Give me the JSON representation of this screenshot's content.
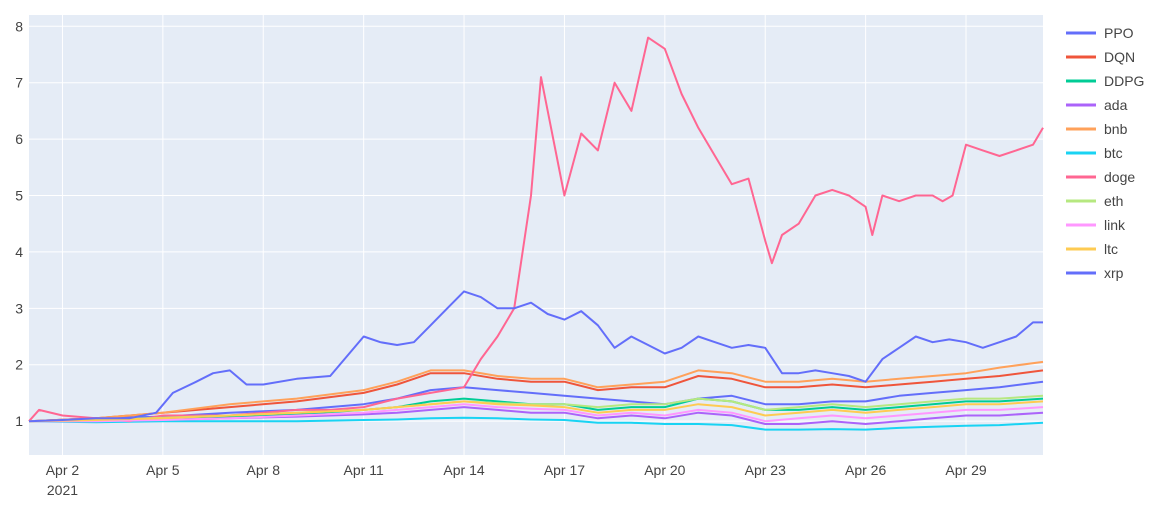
{
  "chart_data": {
    "type": "line",
    "title": "",
    "xlabel": "",
    "ylabel": "",
    "x_ticks": [
      "Apr 2",
      "Apr 5",
      "Apr 8",
      "Apr 11",
      "Apr 14",
      "Apr 17",
      "Apr 20",
      "Apr 23",
      "Apr 26",
      "Apr 29"
    ],
    "x_tick_days": [
      2,
      5,
      8,
      11,
      14,
      17,
      20,
      23,
      26,
      29
    ],
    "x_year_label": "2021",
    "xlim_days": [
      1,
      31.3
    ],
    "y_ticks": [
      1,
      2,
      3,
      4,
      5,
      6,
      7,
      8
    ],
    "ylim": [
      0.4,
      8.2
    ],
    "grid": true,
    "legend_position": "right",
    "series": [
      {
        "name": "PPO",
        "color": "#636efa",
        "x": [
          1,
          3,
          5,
          7,
          9,
          11,
          12,
          13,
          14,
          15,
          16,
          17,
          18,
          19,
          20,
          21,
          22,
          23,
          24,
          25,
          26,
          27,
          28,
          29,
          30,
          31.3
        ],
        "y": [
          1.0,
          1.05,
          1.08,
          1.15,
          1.2,
          1.3,
          1.4,
          1.55,
          1.6,
          1.55,
          1.5,
          1.45,
          1.4,
          1.35,
          1.3,
          1.4,
          1.45,
          1.3,
          1.3,
          1.35,
          1.35,
          1.45,
          1.5,
          1.55,
          1.6,
          1.7
        ]
      },
      {
        "name": "DQN",
        "color": "#EF553B",
        "x": [
          1,
          3,
          5,
          7,
          9,
          11,
          12,
          13,
          14,
          15,
          16,
          17,
          18,
          19,
          20,
          21,
          22,
          23,
          24,
          25,
          26,
          27,
          28,
          29,
          30,
          31.3
        ],
        "y": [
          1.0,
          1.05,
          1.15,
          1.25,
          1.35,
          1.5,
          1.65,
          1.85,
          1.85,
          1.75,
          1.7,
          1.7,
          1.55,
          1.6,
          1.6,
          1.8,
          1.75,
          1.6,
          1.6,
          1.65,
          1.6,
          1.65,
          1.7,
          1.75,
          1.8,
          1.9
        ]
      },
      {
        "name": "DDPG",
        "color": "#00cc96",
        "x": [
          1,
          3,
          5,
          7,
          9,
          11,
          12,
          13,
          14,
          15,
          16,
          17,
          18,
          19,
          20,
          21,
          22,
          23,
          24,
          25,
          26,
          27,
          28,
          29,
          30,
          31.3
        ],
        "y": [
          1.0,
          1.02,
          1.05,
          1.08,
          1.12,
          1.2,
          1.25,
          1.35,
          1.4,
          1.35,
          1.3,
          1.3,
          1.2,
          1.25,
          1.25,
          1.4,
          1.35,
          1.2,
          1.2,
          1.25,
          1.2,
          1.25,
          1.3,
          1.35,
          1.35,
          1.4
        ]
      },
      {
        "name": "ada",
        "color": "#ab63fa",
        "x": [
          1,
          3,
          5,
          7,
          9,
          11,
          12,
          13,
          14,
          15,
          16,
          17,
          18,
          19,
          20,
          21,
          22,
          23,
          24,
          25,
          26,
          27,
          28,
          29,
          30,
          31.3
        ],
        "y": [
          1.0,
          1.0,
          1.02,
          1.05,
          1.08,
          1.12,
          1.15,
          1.2,
          1.25,
          1.2,
          1.15,
          1.15,
          1.05,
          1.1,
          1.05,
          1.15,
          1.1,
          0.95,
          0.95,
          1.0,
          0.95,
          1.0,
          1.05,
          1.1,
          1.1,
          1.15
        ]
      },
      {
        "name": "bnb",
        "color": "#FFA15A",
        "x": [
          1,
          3,
          5,
          7,
          9,
          11,
          12,
          13,
          14,
          15,
          16,
          17,
          18,
          19,
          20,
          21,
          22,
          23,
          24,
          25,
          26,
          27,
          28,
          29,
          30,
          31.3
        ],
        "y": [
          1.0,
          1.05,
          1.15,
          1.3,
          1.4,
          1.55,
          1.7,
          1.9,
          1.9,
          1.8,
          1.75,
          1.75,
          1.6,
          1.65,
          1.7,
          1.9,
          1.85,
          1.7,
          1.7,
          1.75,
          1.7,
          1.75,
          1.8,
          1.85,
          1.95,
          2.05
        ]
      },
      {
        "name": "btc",
        "color": "#19d3f3",
        "x": [
          1,
          3,
          5,
          7,
          9,
          11,
          12,
          13,
          14,
          15,
          16,
          17,
          18,
          19,
          20,
          21,
          22,
          23,
          24,
          25,
          26,
          27,
          28,
          29,
          30,
          31.3
        ],
        "y": [
          1.0,
          0.98,
          1.0,
          1.0,
          1.0,
          1.02,
          1.03,
          1.05,
          1.06,
          1.05,
          1.03,
          1.02,
          0.97,
          0.97,
          0.95,
          0.95,
          0.93,
          0.85,
          0.85,
          0.86,
          0.85,
          0.88,
          0.9,
          0.92,
          0.93,
          0.97
        ]
      },
      {
        "name": "doge",
        "color": "#FF6692",
        "x": [
          1,
          1.3,
          2,
          3,
          4,
          5,
          6,
          7,
          8,
          9,
          10,
          11,
          12,
          13,
          14,
          14.5,
          15,
          15.5,
          16,
          16.3,
          16.5,
          17,
          17.5,
          18,
          18.5,
          19,
          19.5,
          20,
          20.5,
          21,
          21.5,
          22,
          22.5,
          23,
          23.2,
          23.5,
          24,
          24.5,
          25,
          25.5,
          26,
          26.2,
          26.5,
          27,
          27.5,
          28,
          28.3,
          28.6,
          29,
          29.5,
          30,
          30.5,
          31,
          31.3
        ],
        "y": [
          1.0,
          1.2,
          1.1,
          1.05,
          1.0,
          1.1,
          1.1,
          1.1,
          1.15,
          1.2,
          1.2,
          1.25,
          1.4,
          1.5,
          1.6,
          2.1,
          2.5,
          3.0,
          5.0,
          7.1,
          6.5,
          5.0,
          6.1,
          5.8,
          7.0,
          6.5,
          7.8,
          7.6,
          6.8,
          6.2,
          5.7,
          5.2,
          5.3,
          4.2,
          3.8,
          4.3,
          4.5,
          5.0,
          5.1,
          5.0,
          4.8,
          4.3,
          5.0,
          4.9,
          5.0,
          5.0,
          4.9,
          5.0,
          5.9,
          5.8,
          5.7,
          5.8,
          5.9,
          6.2
        ]
      },
      {
        "name": "eth",
        "color": "#B6E880",
        "x": [
          1,
          3,
          5,
          7,
          9,
          11,
          12,
          13,
          14,
          15,
          16,
          17,
          18,
          19,
          20,
          21,
          22,
          23,
          24,
          25,
          26,
          27,
          28,
          29,
          30,
          31.3
        ],
        "y": [
          1.0,
          1.02,
          1.06,
          1.1,
          1.15,
          1.2,
          1.25,
          1.3,
          1.35,
          1.32,
          1.3,
          1.3,
          1.25,
          1.3,
          1.3,
          1.4,
          1.35,
          1.2,
          1.25,
          1.3,
          1.25,
          1.3,
          1.35,
          1.4,
          1.4,
          1.45
        ]
      },
      {
        "name": "link",
        "color": "#FF97FF",
        "x": [
          1,
          3,
          5,
          7,
          9,
          11,
          12,
          13,
          14,
          15,
          16,
          17,
          18,
          19,
          20,
          21,
          22,
          23,
          24,
          25,
          26,
          27,
          28,
          29,
          30,
          31.3
        ],
        "y": [
          1.0,
          1.0,
          1.02,
          1.05,
          1.1,
          1.15,
          1.2,
          1.25,
          1.3,
          1.25,
          1.22,
          1.2,
          1.1,
          1.15,
          1.1,
          1.2,
          1.15,
          1.0,
          1.05,
          1.1,
          1.05,
          1.1,
          1.15,
          1.2,
          1.2,
          1.25
        ]
      },
      {
        "name": "ltc",
        "color": "#FECB52",
        "x": [
          1,
          3,
          5,
          7,
          9,
          11,
          12,
          13,
          14,
          15,
          16,
          17,
          18,
          19,
          20,
          21,
          22,
          23,
          24,
          25,
          26,
          27,
          28,
          29,
          30,
          31.3
        ],
        "y": [
          1.0,
          1.02,
          1.05,
          1.1,
          1.15,
          1.2,
          1.25,
          1.3,
          1.35,
          1.3,
          1.28,
          1.25,
          1.15,
          1.2,
          1.2,
          1.3,
          1.25,
          1.1,
          1.15,
          1.2,
          1.15,
          1.2,
          1.25,
          1.3,
          1.3,
          1.35
        ]
      },
      {
        "name": "xrp",
        "color": "#636efa",
        "x": [
          1,
          2,
          3,
          4,
          4.8,
          5.3,
          6,
          6.5,
          7,
          7.5,
          8,
          9,
          10,
          11,
          11.5,
          12,
          12.5,
          13,
          13.5,
          14,
          14.5,
          15,
          15.5,
          16,
          16.5,
          17,
          17.5,
          18,
          18.5,
          19,
          19.5,
          20,
          20.5,
          21,
          21.5,
          22,
          22.5,
          23,
          23.5,
          24,
          24.5,
          25,
          25.5,
          26,
          26.5,
          27,
          27.5,
          28,
          28.5,
          29,
          29.5,
          30,
          30.5,
          31,
          31.3
        ],
        "y": [
          1.0,
          1.02,
          1.05,
          1.05,
          1.15,
          1.5,
          1.7,
          1.85,
          1.9,
          1.65,
          1.65,
          1.75,
          1.8,
          2.5,
          2.4,
          2.35,
          2.4,
          2.7,
          3.0,
          3.3,
          3.2,
          3.0,
          3.0,
          3.1,
          2.9,
          2.8,
          2.95,
          2.7,
          2.3,
          2.5,
          2.35,
          2.2,
          2.3,
          2.5,
          2.4,
          2.3,
          2.35,
          2.3,
          1.85,
          1.85,
          1.9,
          1.85,
          1.8,
          1.7,
          2.1,
          2.3,
          2.5,
          2.4,
          2.45,
          2.4,
          2.3,
          2.4,
          2.5,
          2.75,
          2.75
        ]
      }
    ]
  }
}
